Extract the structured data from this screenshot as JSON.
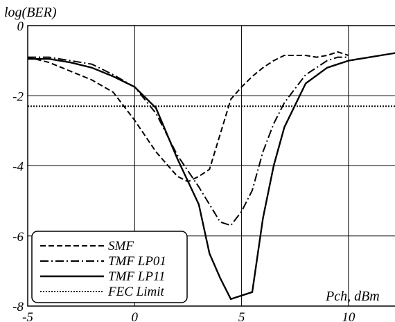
{
  "chart_data": {
    "type": "line",
    "title": "",
    "xlabel": "Pch, dBm",
    "ylabel": "log(BER)",
    "xlim": [
      -5,
      12.5
    ],
    "ylim": [
      -8,
      0
    ],
    "xticks": [
      -5,
      0,
      5,
      10
    ],
    "yticks": [
      0,
      -2,
      -4,
      -6,
      -8
    ],
    "x_tick_labels": [
      "-5",
      "0",
      "5",
      "10"
    ],
    "y_tick_labels": [
      "0",
      "-2",
      "-4",
      "-6",
      "-8"
    ],
    "grid": true,
    "legend_position": "bottom-left",
    "series": [
      {
        "name": "SMF",
        "style": "dashed",
        "x": [
          -5,
          -4,
          -3,
          -2,
          -1,
          0,
          1,
          2,
          2.5,
          3,
          3.5,
          4,
          4.5,
          5,
          5.5,
          6,
          6.5,
          7,
          7.5,
          8,
          8.5,
          9,
          9.5,
          10
        ],
        "y": [
          -0.9,
          -1.05,
          -1.3,
          -1.55,
          -1.9,
          -2.7,
          -3.6,
          -4.3,
          -4.45,
          -4.3,
          -4.1,
          -3.1,
          -2.1,
          -1.75,
          -1.45,
          -1.2,
          -1.0,
          -0.85,
          -0.85,
          -0.85,
          -0.9,
          -0.85,
          -0.75,
          -0.85
        ]
      },
      {
        "name": "TMF LP01",
        "style": "dashdot",
        "x": [
          -5,
          -4,
          -3,
          -2,
          -1,
          0,
          1,
          2,
          3,
          3.5,
          4,
          4.5,
          5,
          5.5,
          6,
          6.5,
          7,
          7.5,
          8,
          8.5,
          9,
          9.5,
          10
        ],
        "y": [
          -0.9,
          -0.9,
          -1.0,
          -1.1,
          -1.4,
          -1.75,
          -2.5,
          -3.7,
          -4.6,
          -5.1,
          -5.6,
          -5.7,
          -5.3,
          -4.7,
          -3.6,
          -2.8,
          -2.2,
          -1.8,
          -1.4,
          -1.2,
          -1.0,
          -0.9,
          -0.9
        ]
      },
      {
        "name": "TMF LP11",
        "style": "solid",
        "x": [
          -5,
          -4,
          -3,
          -2,
          -1,
          0,
          1,
          2,
          3,
          3.5,
          4,
          4.5,
          5,
          5.5,
          6,
          6.5,
          7,
          8,
          9,
          10,
          11,
          12,
          12.5
        ],
        "y": [
          -0.95,
          -0.95,
          -1.05,
          -1.2,
          -1.45,
          -1.75,
          -2.35,
          -3.8,
          -5.1,
          -6.5,
          -7.2,
          -7.8,
          -7.7,
          -7.6,
          -5.5,
          -4.0,
          -2.9,
          -1.65,
          -1.2,
          -1.0,
          -0.9,
          -0.8,
          -0.75
        ]
      },
      {
        "name": "FEC Limit",
        "style": "dotted",
        "x": [
          -5,
          12.5
        ],
        "y": [
          -2.3,
          -2.3
        ]
      }
    ]
  }
}
